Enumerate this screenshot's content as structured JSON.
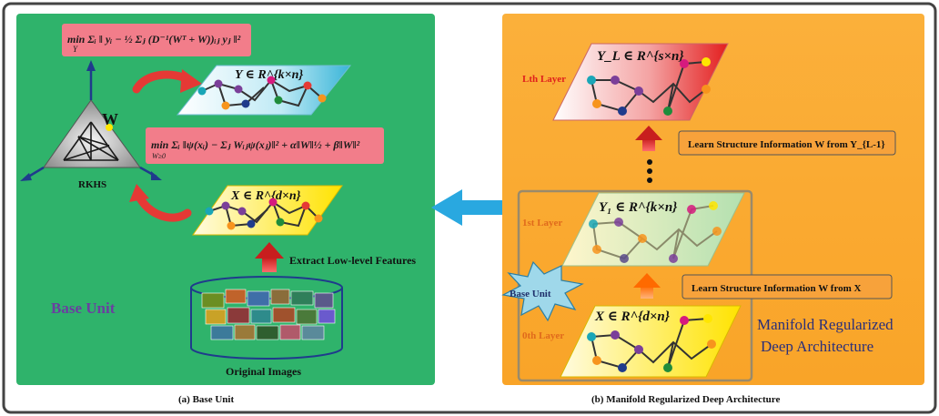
{
  "colors": {
    "left_panel": "#2fb36b",
    "right_panel": "#fbb03b",
    "frame": "#444444",
    "red_arrow": "#e53935",
    "blue_arrow": "#29a8e0",
    "box_pink": "#f27d8a",
    "label_box": "#f7a23b",
    "starburst": "#9fd8ea"
  },
  "panel_a": {
    "caption": "(a) Base Unit",
    "title": "Base Unit",
    "rkhs_label": "RKHS",
    "w_label": "W",
    "eq1": "min Σᵢ ‖ yᵢ − ½ Σⱼ (D⁻¹(Wᵀ + W))ᵢⱼ yⱼ ‖²",
    "eq1_sub": "Y",
    "eq2": "min Σᵢ ‖ψ(xᵢ) − Σⱼ Wᵢⱼψ(xⱼ)‖² + α‖W‖½ + β‖W‖²",
    "eq2_sub": "W≥0",
    "y_space": "Y ∈ R^{k×n}",
    "x_space": "X ∈ R^{d×n}",
    "extract_label": "Extract Low-level Features",
    "images_label": "Original Images"
  },
  "panel_b": {
    "caption": "(b) Manifold Regularized Deep Architecture",
    "lth_layer": "Lth Layer",
    "first_layer": "1st Layer",
    "zeroth_layer": "0th Layer",
    "yl_space": "Y_L ∈ R^{s×n}",
    "y1_space": "Y₁ ∈ R^{k×n}",
    "x_space": "X ∈ R^{d×n}",
    "learn_top": "Learn Structure Information W from Y_{L-1}",
    "learn_bottom": "Learn Structure Information W from X",
    "base_unit_badge": "Base Unit",
    "title_line1": "Manifold Regularized",
    "title_line2": "Deep Architecture"
  }
}
